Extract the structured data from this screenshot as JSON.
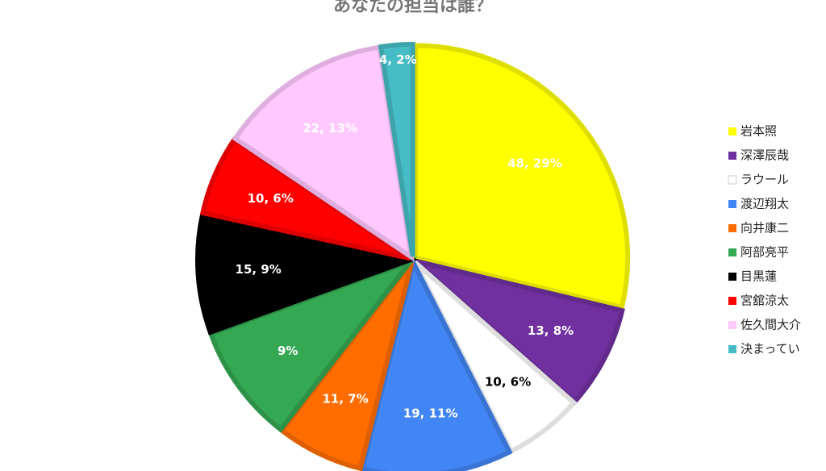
{
  "chart_data": {
    "type": "pie",
    "title": "あなたの担当は誰？",
    "categories": [
      "岩本照",
      "深澤辰哉",
      "ラウール",
      "渡辺翔太",
      "向井康二",
      "阿部亮平",
      "目黒蓮",
      "宮舘涼太",
      "佐久間大介",
      "決まってい"
    ],
    "values": [
      48,
      13,
      10,
      19,
      11,
      15,
      15,
      10,
      22,
      4
    ],
    "value_labels": [
      "48, 29%",
      "13, 8%",
      "10, 6%",
      "19, 11%",
      "11, 7%",
      "9%",
      "15, 9%",
      "10, 6%",
      "22, 13%",
      "4, 2%"
    ],
    "colors": [
      "#ffff00",
      "#7030a0",
      "#ffffff",
      "#4285f4",
      "#ff6d01",
      "#34a853",
      "#000000",
      "#ff0000",
      "#ffc8ff",
      "#46bdc6"
    ],
    "legend": "right"
  }
}
